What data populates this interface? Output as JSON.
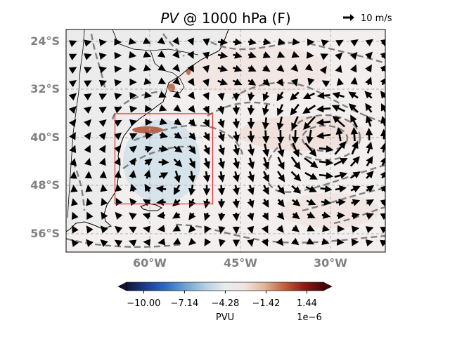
{
  "title": {
    "variable": "PV",
    "rest": " @ 1000 hPa (F)"
  },
  "quiver_key": {
    "label": "10 m/s"
  },
  "map": {
    "extent": {
      "lon_min": -69.5,
      "lon_max": -20.5,
      "lat_min": -59,
      "lat_max": -22
    },
    "lat_ticks": [
      {
        "value": -24,
        "label": "24°S"
      },
      {
        "value": -32,
        "label": "32°S"
      },
      {
        "value": -40,
        "label": "40°S"
      },
      {
        "value": -48,
        "label": "48°S"
      },
      {
        "value": -56,
        "label": "56°S"
      }
    ],
    "lon_ticks": [
      {
        "value": -60,
        "label": "60°W"
      },
      {
        "value": -45,
        "label": "45°W"
      },
      {
        "value": -30,
        "label": "30°W"
      }
    ],
    "gridlines": true,
    "box": {
      "lon_min": -62,
      "lon_max": -47,
      "lat_min": -51,
      "lat_max": -36,
      "color": "#e03030"
    },
    "contour_color": "#808080",
    "vector_color": "#000000"
  },
  "colorbar": {
    "label": "PVU",
    "scale_label": "1e−6",
    "ticks": [
      "−10.00",
      "−7.14",
      "−4.28",
      "−1.42",
      "1.44"
    ],
    "range": [
      -11.2,
      2.6
    ],
    "colors": [
      "#101638",
      "#1f3d8c",
      "#2f6cc4",
      "#6fa3cf",
      "#b5cfe0",
      "#e8ecee",
      "#f1e4df",
      "#e0b59b",
      "#c0623f",
      "#8f1c16",
      "#4b050b"
    ]
  }
}
